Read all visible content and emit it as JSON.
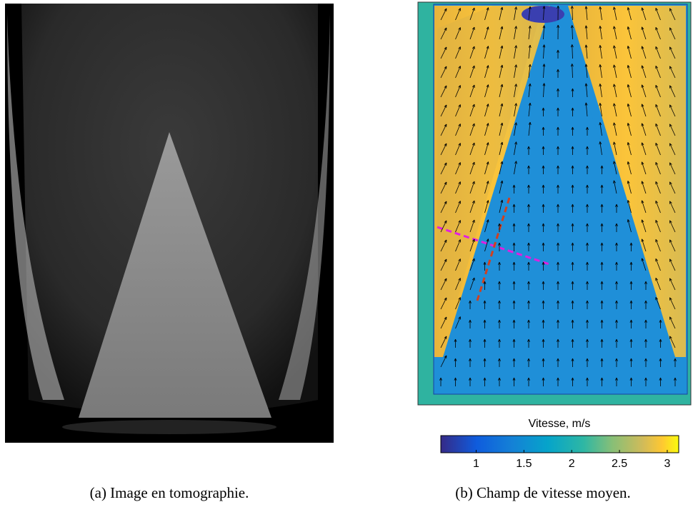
{
  "figure": {
    "panels": [
      {
        "caption": "(a) Image en tomographie."
      },
      {
        "caption": "(b) Champ de vitesse moyen.",
        "colorbar": {
          "label": "Vitesse, m/s",
          "lim": [
            0.63,
            3.12
          ],
          "ticks": [
            1,
            1.5,
            2,
            2.5,
            3
          ]
        }
      }
    ]
  }
}
